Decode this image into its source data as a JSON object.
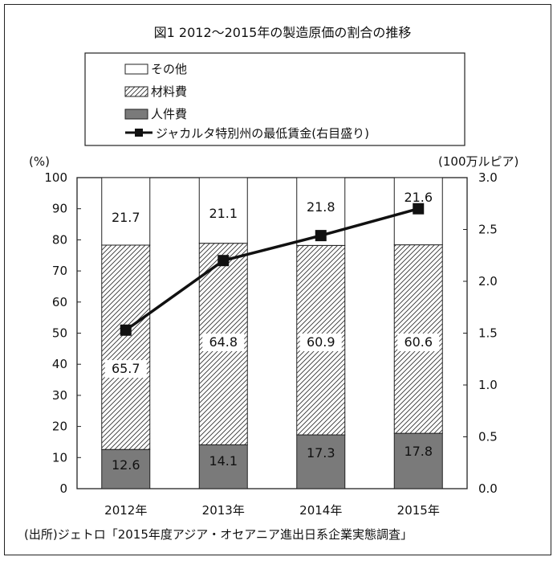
{
  "chart_data": {
    "type": "bar",
    "stacked": true,
    "title": "図1 2012～2015年の製造原価の割合の推移",
    "categories": [
      "2012年",
      "2013年",
      "2014年",
      "2015年"
    ],
    "series": [
      {
        "name": "人件費",
        "values": [
          12.6,
          14.1,
          17.3,
          17.8
        ],
        "color": "#7a7a7a",
        "pattern": "solid"
      },
      {
        "name": "材料費",
        "values": [
          65.7,
          64.8,
          60.9,
          60.6
        ],
        "color": "#ffffff",
        "pattern": "hatch"
      },
      {
        "name": "その他",
        "values": [
          21.7,
          21.1,
          21.8,
          21.6
        ],
        "color": "#ffffff",
        "pattern": "none"
      }
    ],
    "line_series": {
      "name": "ジャカルタ特別州の最低賃金(右目盛り)",
      "axis": "right",
      "values": [
        1.529,
        2.2,
        2.441,
        2.7
      ],
      "color": "#111111",
      "marker": "square"
    },
    "left_axis": {
      "unit_label": "(%)",
      "ylim": [
        0,
        100
      ],
      "ticks": [
        "0",
        "10",
        "20",
        "30",
        "40",
        "50",
        "60",
        "70",
        "80",
        "90",
        "100"
      ]
    },
    "right_axis": {
      "unit_label": "(100万ルピア)",
      "ylim": [
        0,
        3
      ],
      "ticks": [
        "0.0",
        "0.5",
        "1.0",
        "1.5",
        "2.0",
        "2.5",
        "3.0"
      ]
    },
    "legend_placement": "top-left",
    "legend": [
      "その他",
      "材料費",
      "人件費",
      "ジャカルタ特別州の最低賃金(右目盛り)"
    ],
    "source": "(出所)ジェトロ「2015年度アジア・オセアニア進出日系企業実態調査」",
    "grid": false
  }
}
